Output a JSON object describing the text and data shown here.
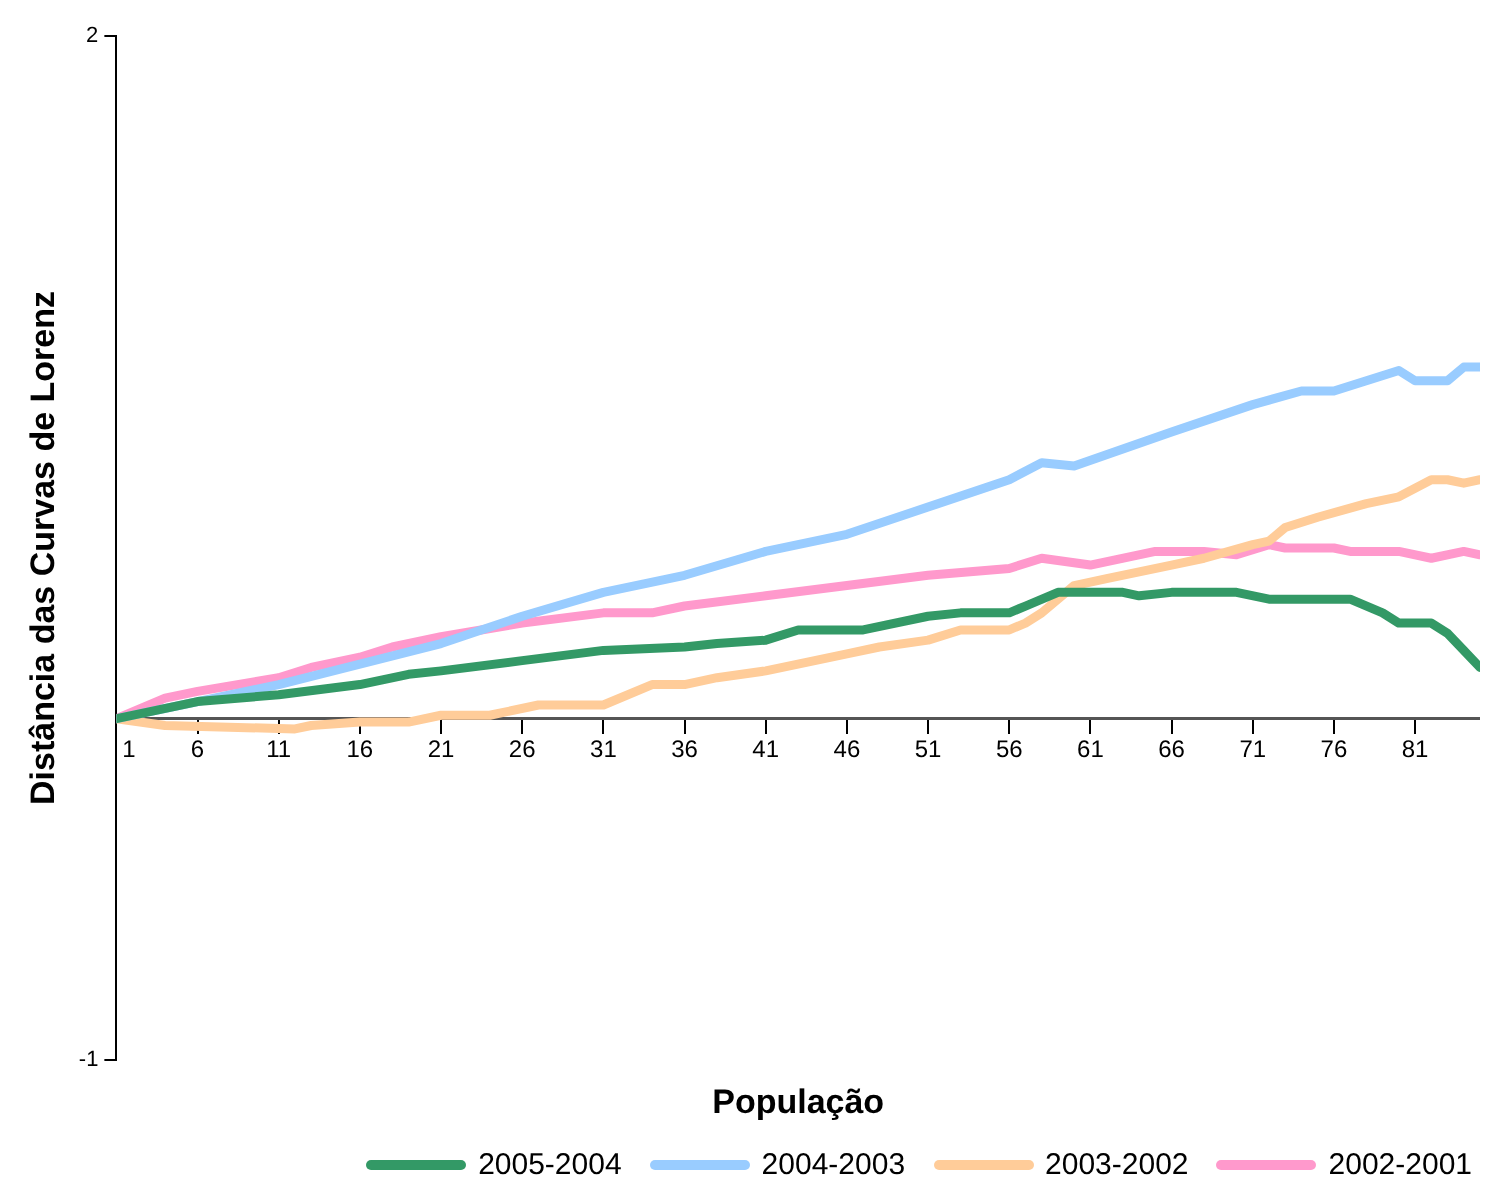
{
  "chart_data": {
    "type": "line",
    "xlabel": "População",
    "ylabel": "Distância das Curvas de Lorenz",
    "xlim": [
      1,
      85
    ],
    "xticks": [
      1,
      6,
      11,
      16,
      21,
      26,
      31,
      36,
      41,
      46,
      51,
      56,
      61,
      66,
      71,
      76,
      81
    ],
    "ylim": [
      -1,
      2
    ],
    "yticks": [
      -1,
      2
    ],
    "grid": false,
    "legend": "bottom",
    "marker": "none",
    "line_style": "solid",
    "series": [
      {
        "name": "2005-2004",
        "color": "#339966",
        "x": [
          1,
          6,
          11,
          16,
          19,
          21,
          26,
          31,
          36,
          38,
          41,
          43,
          47,
          51,
          53,
          56,
          57,
          59,
          61,
          63,
          64,
          66,
          70,
          72,
          77,
          79,
          80,
          82,
          83,
          84,
          85
        ],
        "values": [
          0,
          0.05,
          0.07,
          0.1,
          0.13,
          0.14,
          0.17,
          0.2,
          0.21,
          0.22,
          0.23,
          0.26,
          0.26,
          0.3,
          0.31,
          0.31,
          0.33,
          0.37,
          0.37,
          0.37,
          0.36,
          0.37,
          0.37,
          0.35,
          0.35,
          0.31,
          0.28,
          0.28,
          0.25,
          0.2,
          0.15
        ]
      },
      {
        "name": "2004-2003",
        "color": "#99ccff",
        "x": [
          1,
          11,
          21,
          26,
          31,
          36,
          41,
          46,
          51,
          56,
          58,
          60,
          66,
          71,
          74,
          76,
          80,
          81,
          83,
          84,
          85
        ],
        "values": [
          0,
          0.1,
          0.22,
          0.3,
          0.37,
          0.42,
          0.49,
          0.54,
          0.62,
          0.7,
          0.75,
          0.74,
          0.84,
          0.92,
          0.96,
          0.96,
          1.02,
          0.99,
          0.99,
          1.03,
          1.03
        ]
      },
      {
        "name": "2003-2002",
        "color": "#ffcc99",
        "x": [
          1,
          4,
          12,
          13,
          16,
          19,
          21,
          24,
          27,
          31,
          34,
          36,
          38,
          41,
          46,
          48,
          51,
          53,
          56,
          57,
          58,
          60,
          62,
          66,
          68,
          71,
          72,
          73,
          75,
          78,
          80,
          82,
          83,
          84,
          85
        ],
        "values": [
          0,
          -0.02,
          -0.03,
          -0.02,
          -0.01,
          -0.01,
          0.01,
          0.01,
          0.04,
          0.04,
          0.1,
          0.1,
          0.12,
          0.14,
          0.19,
          0.21,
          0.23,
          0.26,
          0.26,
          0.28,
          0.31,
          0.39,
          0.41,
          0.45,
          0.47,
          0.51,
          0.52,
          0.56,
          0.59,
          0.63,
          0.65,
          0.7,
          0.7,
          0.69,
          0.7
        ]
      },
      {
        "name": "2002-2001",
        "color": "#ff99cc",
        "x": [
          1,
          4,
          6,
          11,
          13,
          16,
          18,
          21,
          26,
          31,
          34,
          36,
          41,
          46,
          51,
          56,
          58,
          61,
          65,
          68,
          70,
          72,
          73,
          76,
          77,
          80,
          82,
          84,
          85
        ],
        "values": [
          0,
          0.06,
          0.08,
          0.12,
          0.15,
          0.18,
          0.21,
          0.24,
          0.28,
          0.31,
          0.31,
          0.33,
          0.36,
          0.39,
          0.42,
          0.44,
          0.47,
          0.45,
          0.49,
          0.49,
          0.48,
          0.51,
          0.5,
          0.5,
          0.49,
          0.49,
          0.47,
          0.49,
          0.48
        ]
      }
    ]
  }
}
